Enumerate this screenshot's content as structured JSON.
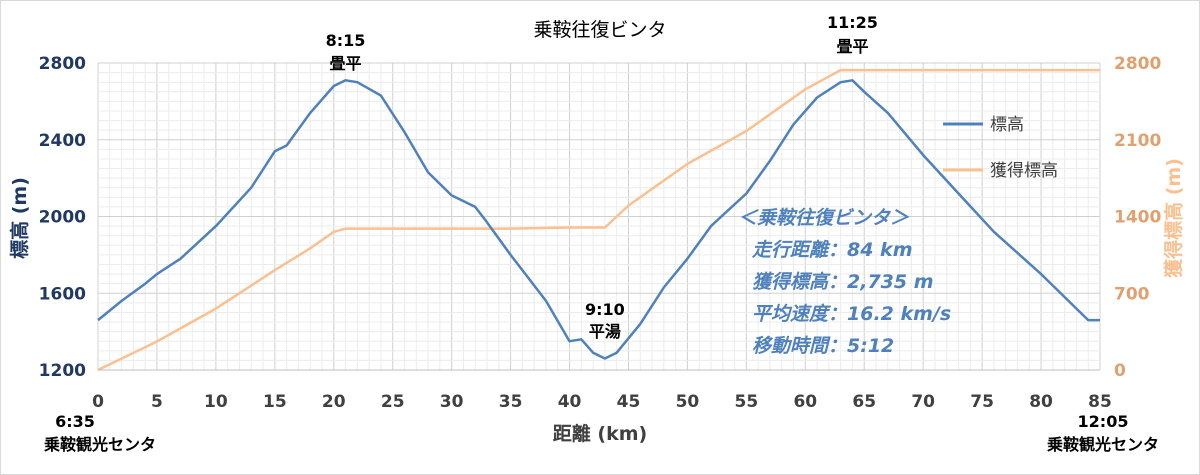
{
  "chart_data": {
    "type": "line",
    "title": "乗鞍往復ビンタ",
    "xlabel": "距離 (km)",
    "ylabel_left": "標高 (m)",
    "ylabel_right": "獲得標高 (m)",
    "xlim": [
      0,
      85
    ],
    "ylim_left": [
      1200,
      2800
    ],
    "ylim_right": [
      0,
      2800
    ],
    "x_ticks": [
      "0",
      "5",
      "10",
      "15",
      "20",
      "25",
      "30",
      "35",
      "40",
      "45",
      "50",
      "55",
      "60",
      "65",
      "70",
      "75",
      "80",
      "85"
    ],
    "y_left_ticks": [
      "1200",
      "1600",
      "2000",
      "2400",
      "2800"
    ],
    "y_right_ticks": [
      "0",
      "700",
      "1400",
      "2100",
      "2800"
    ],
    "grid": true,
    "legend_position": "right",
    "colors": {
      "elevation": "#4f81bd",
      "gain": "#fac090",
      "axis_left": "#1f3864",
      "axis_right": "#e0a070"
    },
    "series": [
      {
        "name": "標高",
        "axis": "left",
        "x": [
          0,
          2,
          4,
          5,
          7,
          10,
          13,
          15,
          16,
          18,
          20,
          21,
          22,
          24,
          26,
          28,
          30,
          32,
          33,
          35,
          38,
          40,
          41,
          42,
          43,
          44,
          46,
          48,
          50,
          52,
          55,
          57,
          59,
          61,
          63,
          64,
          65,
          67,
          70,
          73,
          76,
          80,
          84,
          85
        ],
        "y": [
          1460,
          1560,
          1650,
          1700,
          1780,
          1950,
          2150,
          2340,
          2370,
          2540,
          2680,
          2710,
          2700,
          2630,
          2440,
          2230,
          2110,
          2050,
          1970,
          1800,
          1560,
          1350,
          1360,
          1290,
          1260,
          1290,
          1440,
          1630,
          1780,
          1950,
          2120,
          2290,
          2480,
          2620,
          2700,
          2710,
          2650,
          2540,
          2320,
          2120,
          1920,
          1700,
          1460,
          1460
        ]
      },
      {
        "name": "獲得標高",
        "axis": "right",
        "x": [
          0,
          5,
          10,
          15,
          18,
          20,
          21,
          25,
          30,
          35,
          40,
          43,
          45,
          50,
          55,
          60,
          63,
          64,
          70,
          85
        ],
        "y": [
          0,
          260,
          560,
          910,
          1110,
          1260,
          1290,
          1290,
          1290,
          1290,
          1300,
          1300,
          1500,
          1880,
          2180,
          2560,
          2735,
          2735,
          2735,
          2735
        ]
      }
    ],
    "annotations": [
      {
        "x": 0,
        "time": "6:35",
        "place": "乗鞍観光センタ"
      },
      {
        "x": 21,
        "time": "8:15",
        "place": "畳平"
      },
      {
        "x": 43,
        "time": "9:10",
        "place": "平湯"
      },
      {
        "x": 64,
        "time": "11:25",
        "place": "畳平"
      },
      {
        "x": 85,
        "time": "12:05",
        "place": "乗鞍観光センタ"
      }
    ],
    "summary": [
      "＜乗鞍往復ビンタ＞",
      "走行距離：84 km",
      "獲得標高：2,735 m",
      "平均速度：16.2 km/s",
      "移動時間：5:12"
    ]
  }
}
